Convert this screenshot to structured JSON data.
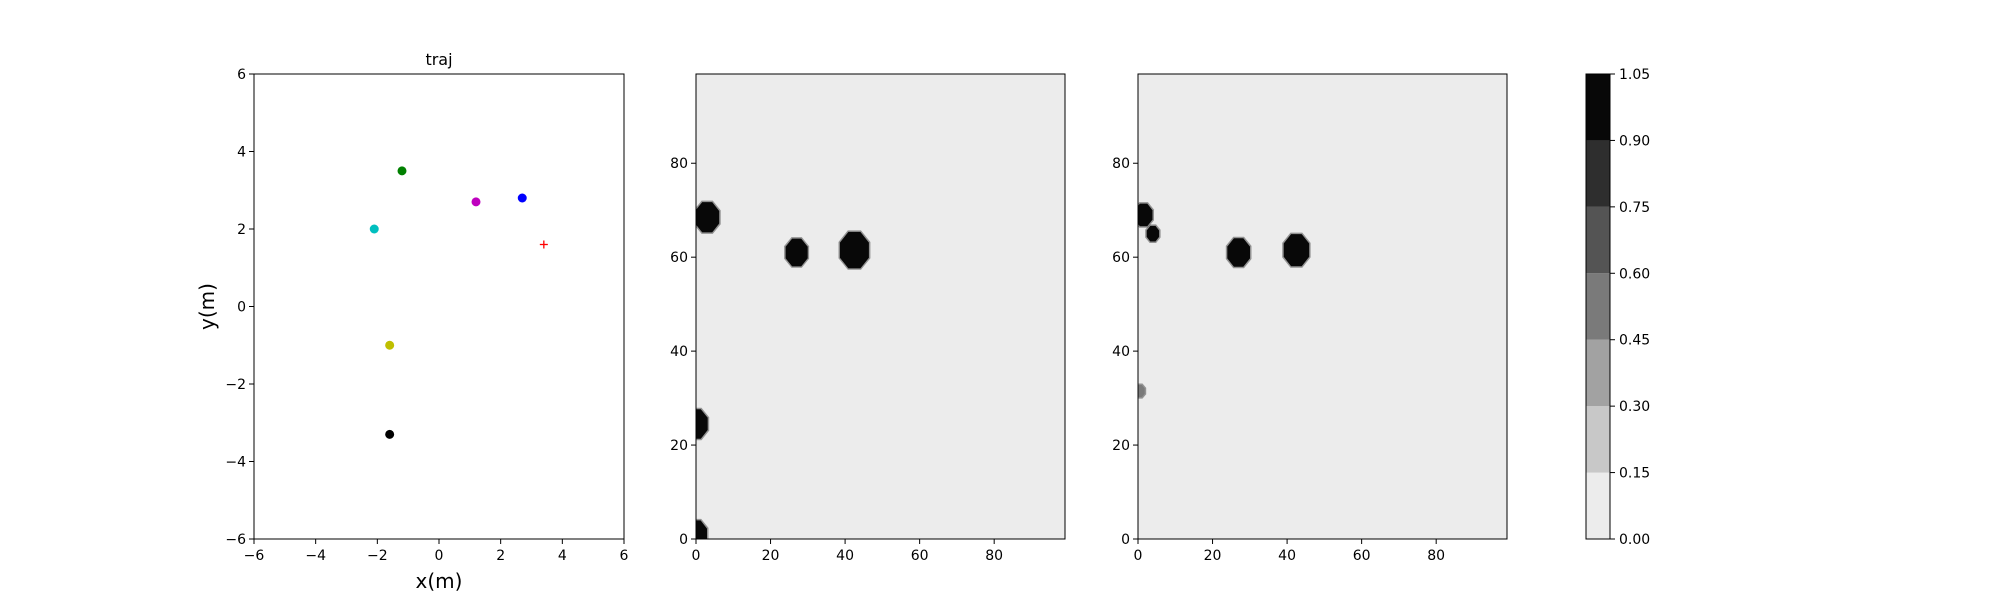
{
  "chart_data": [
    {
      "type": "scatter",
      "title": "traj",
      "xlabel": "x(m)",
      "ylabel": "y(m)",
      "xlim": [
        -6,
        6
      ],
      "ylim": [
        -6,
        6
      ],
      "xticks": [
        -6,
        -4,
        -2,
        0,
        2,
        4,
        6
      ],
      "yticks": [
        -6,
        -4,
        -2,
        0,
        2,
        4,
        6
      ],
      "grid": false,
      "points": [
        {
          "x": -1.2,
          "y": 3.5,
          "color": "#008000",
          "marker": "circle"
        },
        {
          "x": -2.1,
          "y": 2.0,
          "color": "#00bfbf",
          "marker": "circle"
        },
        {
          "x": 1.2,
          "y": 2.7,
          "color": "#bf00bf",
          "marker": "circle"
        },
        {
          "x": 2.7,
          "y": 2.8,
          "color": "#0000ff",
          "marker": "circle"
        },
        {
          "x": -1.6,
          "y": -1.0,
          "color": "#bfbf00",
          "marker": "circle"
        },
        {
          "x": -1.6,
          "y": -3.3,
          "color": "#000000",
          "marker": "circle"
        },
        {
          "x": 3.4,
          "y": 1.6,
          "color": "#ff0000",
          "marker": "plus"
        }
      ]
    },
    {
      "type": "heatmap",
      "xlim": [
        0,
        99
      ],
      "ylim": [
        0,
        99
      ],
      "xticks": [
        0,
        20,
        40,
        60,
        80
      ],
      "yticks": [
        0,
        20,
        40,
        60,
        80
      ],
      "background_value": 0.0,
      "blobs": [
        {
          "cx": 3,
          "cy": 68.5,
          "r": 3.5,
          "value": 1.0
        },
        {
          "cx": 27,
          "cy": 61,
          "r": 3.2,
          "value": 1.0
        },
        {
          "cx": 42.5,
          "cy": 61.5,
          "r": 4.2,
          "value": 1.0
        },
        {
          "cx": 0,
          "cy": 24.5,
          "r": 3.4,
          "value": 1.0
        },
        {
          "cx": 0,
          "cy": 1,
          "r": 3.2,
          "value": 1.0
        }
      ]
    },
    {
      "type": "heatmap",
      "xlim": [
        0,
        99
      ],
      "ylim": [
        0,
        99
      ],
      "xticks": [
        0,
        20,
        40,
        60,
        80
      ],
      "yticks": [
        0,
        20,
        40,
        60,
        80
      ],
      "background_value": 0.0,
      "blobs": [
        {
          "cx": 27,
          "cy": 61,
          "r": 3.3,
          "value": 1.0
        },
        {
          "cx": 42.5,
          "cy": 61.5,
          "r": 3.7,
          "value": 1.0
        },
        {
          "cx": 1.5,
          "cy": 69,
          "r": 2.6,
          "value": 0.9
        },
        {
          "cx": 4,
          "cy": 65,
          "r": 1.8,
          "value": 0.9
        },
        {
          "cx": 0.5,
          "cy": 31.5,
          "r": 1.4,
          "value": 0.5
        }
      ]
    }
  ],
  "colorbar": {
    "levels": [
      0.0,
      0.15,
      0.3,
      0.45,
      0.6,
      0.75,
      0.9,
      1.05
    ],
    "tick_labels": [
      "0.00",
      "0.15",
      "0.30",
      "0.45",
      "0.60",
      "0.75",
      "0.90",
      "1.05"
    ],
    "colors": [
      "#ececec",
      "#c8c8c8",
      "#a2a2a2",
      "#7a7a7a",
      "#545454",
      "#2e2e2e",
      "#080808"
    ]
  }
}
